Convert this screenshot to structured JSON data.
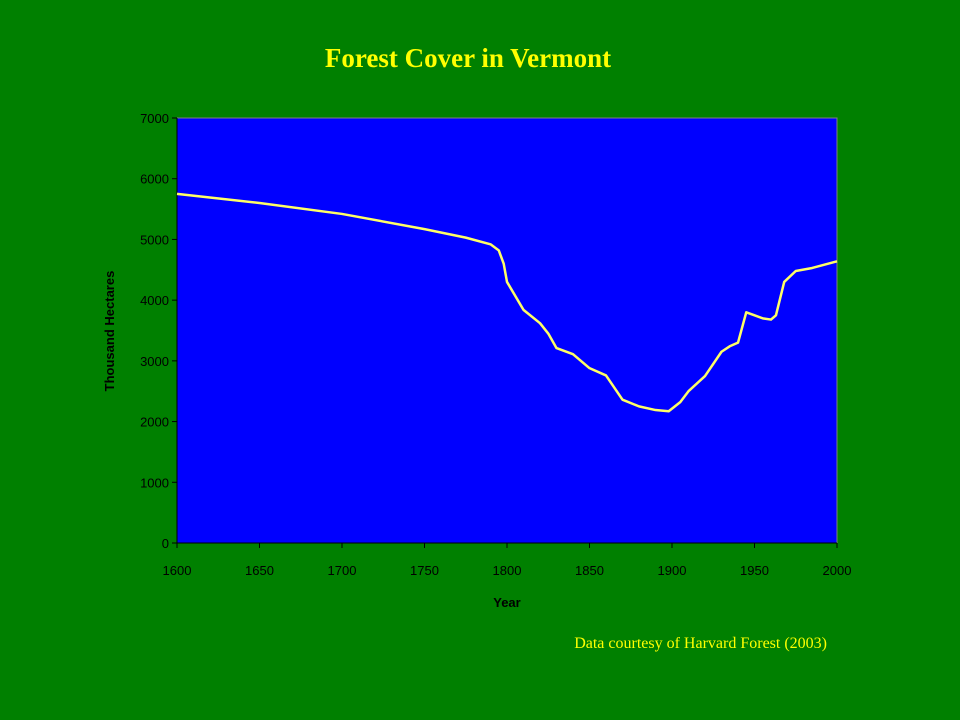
{
  "chart_data": {
    "type": "line",
    "title": "Forest Cover in Vermont",
    "xlabel": "Year",
    "ylabel": "Thousand Hectares",
    "source": "Data courtesy of Harvard Forest (2003)",
    "x": [
      1600,
      1650,
      1700,
      1750,
      1775,
      1790,
      1795,
      1798,
      1800,
      1810,
      1820,
      1825,
      1830,
      1840,
      1850,
      1860,
      1870,
      1880,
      1890,
      1898,
      1905,
      1910,
      1920,
      1930,
      1935,
      1940,
      1945,
      1950,
      1955,
      1960,
      1963,
      1968,
      1975,
      1985,
      2000
    ],
    "series": [
      {
        "name": "Forest cover",
        "color": "#ffff66",
        "values": [
          5750,
          5600,
          5420,
          5170,
          5030,
          4920,
          4820,
          4600,
          4300,
          3840,
          3620,
          3450,
          3210,
          3110,
          2880,
          2760,
          2360,
          2250,
          2190,
          2170,
          2320,
          2500,
          2750,
          3150,
          3240,
          3300,
          3800,
          3750,
          3700,
          3680,
          3750,
          4300,
          4480,
          4530,
          4640
        ]
      }
    ],
    "xlim": [
      1600,
      2000
    ],
    "xticks": [
      1600,
      1650,
      1700,
      1750,
      1800,
      1850,
      1900,
      1950,
      2000
    ],
    "ylim": [
      0,
      7000
    ],
    "yticks": [
      0,
      1000,
      2000,
      3000,
      4000,
      5000,
      6000,
      7000
    ],
    "plot_color": "#0000ff"
  }
}
